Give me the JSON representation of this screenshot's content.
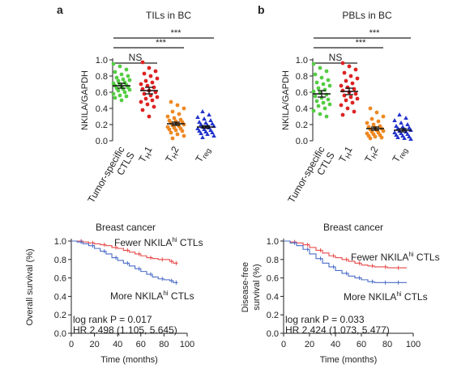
{
  "chart_data": [
    {
      "panel": "a",
      "type": "scatter",
      "title": "TILs in BC",
      "ylabel": "NKILA/GAPDH",
      "ylim": [
        0,
        1.0
      ],
      "yticks": [
        "0.0",
        "0.2",
        "0.4",
        "0.6",
        "0.8",
        "1.0"
      ],
      "categories": [
        {
          "text": "Tumor-specific",
          "text2": "CTLS",
          "color": "#55cc44",
          "marker": "circle"
        },
        {
          "text": "T",
          "sub": "H",
          "suf": "1",
          "color": "#dd2222",
          "marker": "circle"
        },
        {
          "text": "T",
          "sub": "H",
          "suf": "2",
          "color": "#ee8822",
          "marker": "circle"
        },
        {
          "text": "T",
          "sub": "reg",
          "suf": "",
          "color": "#2233cc",
          "marker": "triangle"
        }
      ],
      "means": [
        0.68,
        0.62,
        0.21,
        0.17
      ],
      "sem": [
        0.03,
        0.04,
        0.02,
        0.015
      ],
      "points": [
        [
          0.95,
          0.92,
          0.88,
          0.85,
          0.82,
          0.8,
          0.78,
          0.76,
          0.75,
          0.74,
          0.72,
          0.71,
          0.7,
          0.69,
          0.68,
          0.67,
          0.66,
          0.65,
          0.64,
          0.63,
          0.62,
          0.6,
          0.58,
          0.56,
          0.55,
          0.53,
          0.5
        ],
        [
          0.97,
          0.9,
          0.86,
          0.83,
          0.8,
          0.77,
          0.74,
          0.72,
          0.7,
          0.68,
          0.66,
          0.64,
          0.62,
          0.6,
          0.58,
          0.56,
          0.54,
          0.52,
          0.5,
          0.48,
          0.45,
          0.42,
          0.38,
          0.3
        ],
        [
          0.48,
          0.44,
          0.4,
          0.36,
          0.33,
          0.3,
          0.28,
          0.26,
          0.25,
          0.24,
          0.23,
          0.22,
          0.21,
          0.2,
          0.19,
          0.18,
          0.17,
          0.16,
          0.15,
          0.14,
          0.13,
          0.12,
          0.1,
          0.08,
          0.06,
          0.03
        ],
        [
          0.36,
          0.32,
          0.29,
          0.27,
          0.25,
          0.23,
          0.22,
          0.21,
          0.2,
          0.19,
          0.18,
          0.17,
          0.16,
          0.15,
          0.14,
          0.13,
          0.12,
          0.11,
          0.1,
          0.09,
          0.08,
          0.06,
          0.04
        ]
      ],
      "significance": [
        {
          "from": 0,
          "to": 1,
          "label": "NS"
        },
        {
          "from": 0,
          "to": 2,
          "label": "***"
        },
        {
          "from": 0,
          "to": 3,
          "label": "***"
        }
      ]
    },
    {
      "panel": "b",
      "type": "scatter",
      "title": "PBLs in BC",
      "ylabel": "NKILA/GAPDH",
      "ylim": [
        0,
        1.0
      ],
      "yticks": [
        "0.0",
        "0.2",
        "0.4",
        "0.6",
        "0.8",
        "1.0"
      ],
      "categories": [
        {
          "text": "Tumor-specific",
          "text2": "CTLS",
          "color": "#55cc44",
          "marker": "circle"
        },
        {
          "text": "T",
          "sub": "H",
          "suf": "1",
          "color": "#dd2222",
          "marker": "circle"
        },
        {
          "text": "T",
          "sub": "H",
          "suf": "2",
          "color": "#ee8822",
          "marker": "circle"
        },
        {
          "text": "T",
          "sub": "reg",
          "suf": "",
          "color": "#2233cc",
          "marker": "triangle"
        }
      ],
      "means": [
        0.58,
        0.61,
        0.15,
        0.13
      ],
      "sem": [
        0.04,
        0.04,
        0.02,
        0.02
      ],
      "points": [
        [
          0.95,
          0.9,
          0.86,
          0.82,
          0.78,
          0.75,
          0.72,
          0.7,
          0.68,
          0.65,
          0.63,
          0.61,
          0.59,
          0.57,
          0.55,
          0.53,
          0.51,
          0.49,
          0.47,
          0.45,
          0.43,
          0.4,
          0.37,
          0.33,
          0.3
        ],
        [
          0.96,
          0.92,
          0.88,
          0.84,
          0.8,
          0.77,
          0.74,
          0.71,
          0.68,
          0.66,
          0.64,
          0.62,
          0.6,
          0.58,
          0.56,
          0.54,
          0.52,
          0.5,
          0.47,
          0.44,
          0.4,
          0.36,
          0.32
        ],
        [
          0.4,
          0.35,
          0.3,
          0.27,
          0.24,
          0.22,
          0.2,
          0.18,
          0.17,
          0.16,
          0.15,
          0.14,
          0.13,
          0.12,
          0.11,
          0.1,
          0.09,
          0.08,
          0.07,
          0.06,
          0.05,
          0.04,
          0.03
        ],
        [
          0.32,
          0.28,
          0.25,
          0.22,
          0.2,
          0.18,
          0.17,
          0.16,
          0.15,
          0.14,
          0.13,
          0.12,
          0.11,
          0.1,
          0.09,
          0.08,
          0.07,
          0.06,
          0.05,
          0.04,
          0.03,
          0.02
        ]
      ],
      "significance": [
        {
          "from": 0,
          "to": 1,
          "label": "NS"
        },
        {
          "from": 0,
          "to": 2,
          "label": "***"
        },
        {
          "from": 0,
          "to": 3,
          "label": "***"
        }
      ]
    },
    {
      "type": "line",
      "title": "Breast cancer",
      "ylabel": "Overall survival (%)",
      "xlabel": "Time (months)",
      "xlim": [
        0,
        100
      ],
      "ylim": [
        0,
        1.0
      ],
      "xticks": [
        "0",
        "20",
        "40",
        "60",
        "80",
        "100"
      ],
      "yticks": [
        "0.0",
        "0.2",
        "0.4",
        "0.6",
        "0.8",
        "1.0"
      ],
      "series": [
        {
          "name": "Fewer NKILA",
          "sup": "hi",
          "suffix": " CTLs",
          "color": "#e84a4a",
          "x": [
            0,
            5,
            10,
            15,
            20,
            25,
            30,
            35,
            40,
            45,
            50,
            55,
            60,
            65,
            70,
            75,
            80,
            85,
            88,
            90,
            92
          ],
          "y": [
            1.0,
            1.0,
            0.99,
            0.98,
            0.97,
            0.96,
            0.95,
            0.93,
            0.92,
            0.9,
            0.88,
            0.86,
            0.84,
            0.82,
            0.81,
            0.8,
            0.8,
            0.78,
            0.76,
            0.76,
            0.76
          ]
        },
        {
          "name": "More NKILA",
          "sup": "hi",
          "suffix": " CTLs",
          "color": "#4a6cc8",
          "x": [
            0,
            5,
            10,
            15,
            20,
            25,
            30,
            35,
            40,
            45,
            50,
            55,
            60,
            65,
            70,
            75,
            80,
            85,
            88,
            90,
            92
          ],
          "y": [
            1.0,
            0.99,
            0.97,
            0.95,
            0.92,
            0.89,
            0.86,
            0.82,
            0.79,
            0.76,
            0.73,
            0.7,
            0.67,
            0.64,
            0.61,
            0.59,
            0.58,
            0.57,
            0.55,
            0.55,
            0.55
          ]
        }
      ],
      "stat_lines": [
        "log rank P = 0.017",
        "HR 2.498 (1.105, 5.645)"
      ]
    },
    {
      "type": "line",
      "title": "Breast cancer",
      "ylabel": "Disease-free survival (%)",
      "xlabel": "Time (months)",
      "xlim": [
        0,
        100
      ],
      "ylim": [
        0,
        1.0
      ],
      "xticks": [
        "0",
        "20",
        "40",
        "60",
        "80",
        "100"
      ],
      "yticks": [
        "0.0",
        "0.2",
        "0.4",
        "0.6",
        "0.8",
        "1.0"
      ],
      "series": [
        {
          "name": "Fewer NKILA",
          "sup": "hi",
          "suffix": " CTLs",
          "color": "#e84a4a",
          "x": [
            0,
            5,
            10,
            15,
            20,
            25,
            30,
            35,
            40,
            45,
            50,
            55,
            60,
            65,
            70,
            75,
            80,
            85,
            90,
            95
          ],
          "y": [
            1.0,
            0.99,
            0.98,
            0.96,
            0.93,
            0.9,
            0.87,
            0.84,
            0.82,
            0.8,
            0.78,
            0.76,
            0.74,
            0.73,
            0.72,
            0.72,
            0.71,
            0.71,
            0.71,
            0.71
          ]
        },
        {
          "name": "More NKILA",
          "sup": "hi",
          "suffix": " CTLs",
          "color": "#4a6cc8",
          "x": [
            0,
            5,
            10,
            15,
            20,
            25,
            30,
            35,
            40,
            45,
            50,
            55,
            60,
            65,
            70,
            75,
            80,
            85,
            90,
            95
          ],
          "y": [
            1.0,
            0.98,
            0.95,
            0.91,
            0.86,
            0.81,
            0.76,
            0.72,
            0.68,
            0.65,
            0.62,
            0.6,
            0.58,
            0.56,
            0.55,
            0.55,
            0.55,
            0.55,
            0.55,
            0.55
          ]
        }
      ],
      "stat_lines": [
        "log rank P = 0.033",
        "HR 2.424 (1.073, 5.477)"
      ]
    }
  ],
  "panel_labels": [
    "a",
    "b"
  ]
}
